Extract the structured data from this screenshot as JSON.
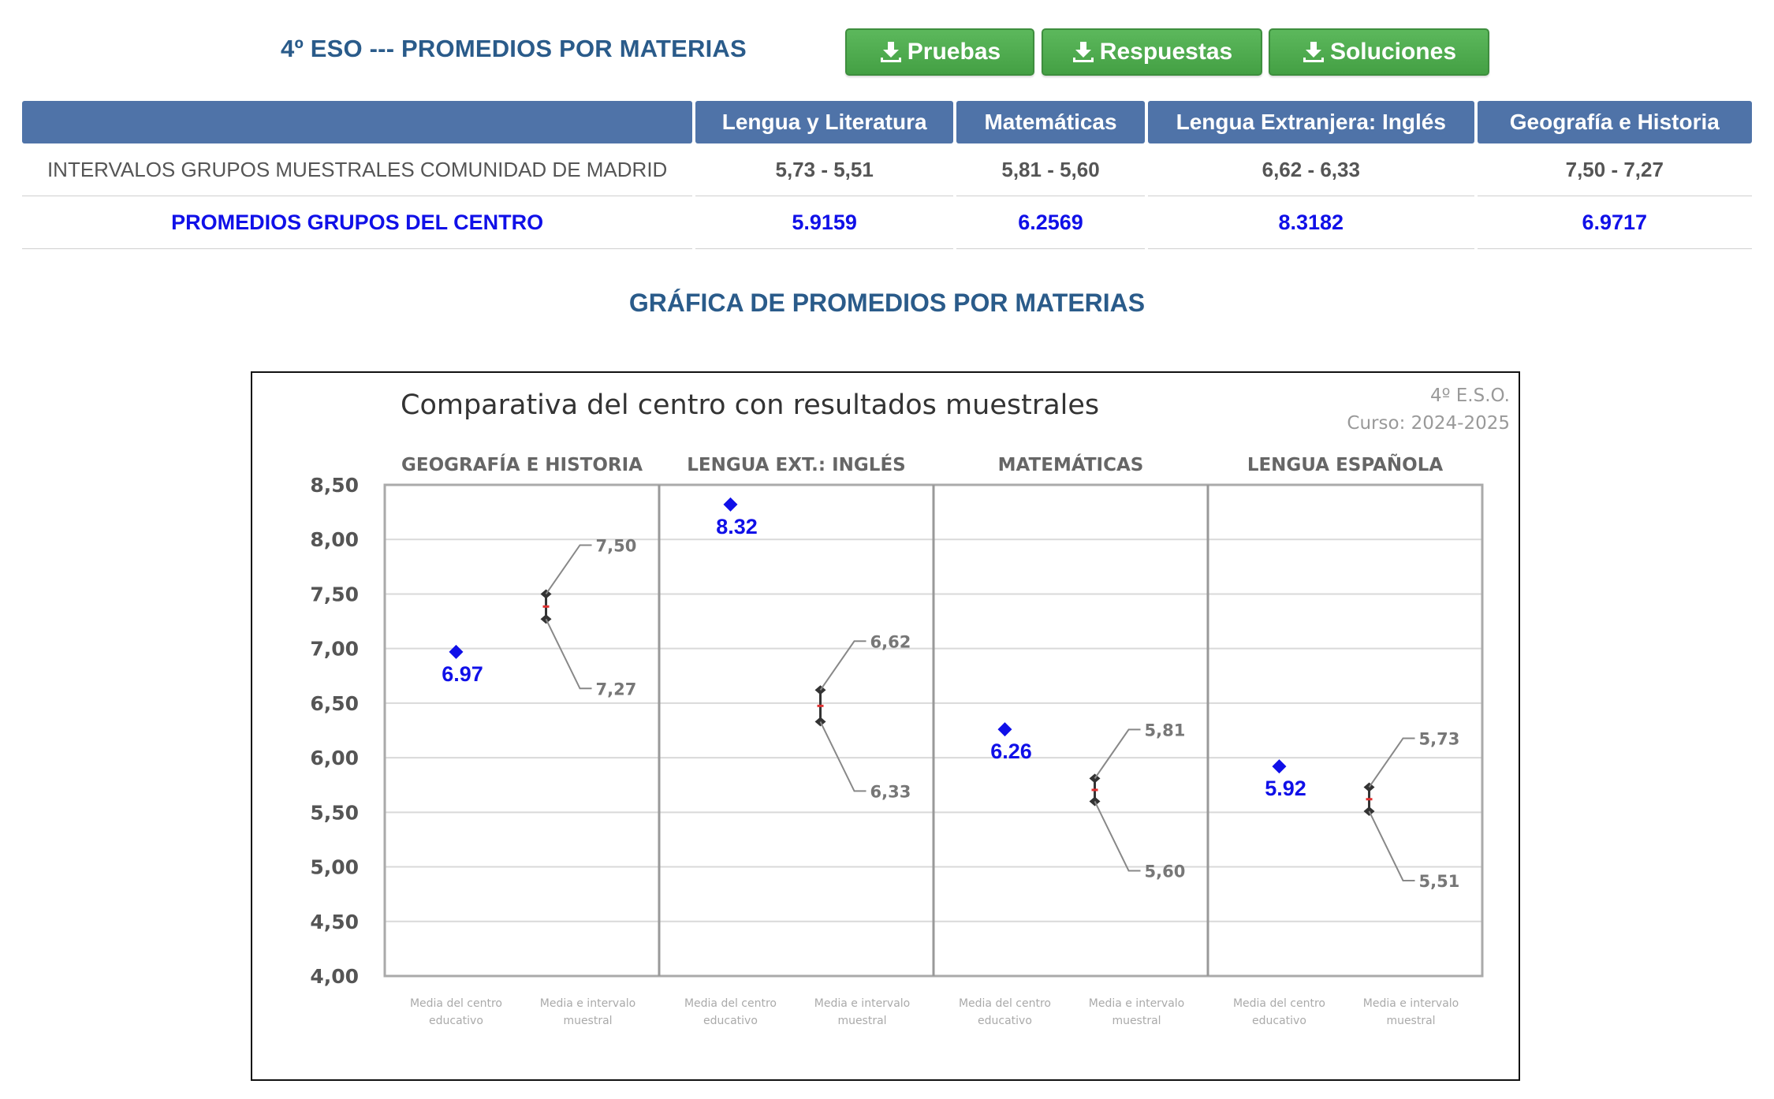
{
  "header": {
    "title": "4º ESO --- PROMEDIOS POR MATERIAS",
    "download_icon": "download-icon",
    "buttons": {
      "pruebas": "Pruebas",
      "respuestas": "Respuestas",
      "soluciones": "Soluciones"
    }
  },
  "table": {
    "headers": [
      "",
      "Lengua y Literatura",
      "Matemáticas",
      "Lengua Extranjera: Inglés",
      "Geografía e Historia"
    ],
    "rows": [
      {
        "label": "INTERVALOS GRUPOS MUESTRALES COMUNIDAD DE MADRID",
        "values": [
          "5,73 - 5,51",
          "5,81 - 5,60",
          "6,62 - 6,33",
          "7,50 - 7,27"
        ]
      },
      {
        "label": "PROMEDIOS GRUPOS DEL CENTRO",
        "values": [
          "5.9159",
          "6.2569",
          "8.3182",
          "6.9717"
        ]
      }
    ]
  },
  "chart_heading": "GRÁFICA DE PROMEDIOS POR MATERIAS",
  "colors": {
    "header_blue": "#4f73a8",
    "title_blue": "#2a5b8a",
    "center_blue": "#1010e8",
    "button_green": "#4cae4c",
    "interval_marker": "#333333",
    "interval_mid": "#e03030"
  },
  "chart_data": {
    "type": "scatter",
    "title": "Comparativa del centro con resultados muestrales",
    "subtitle": [
      "4º E.S.O.",
      "Curso: 2024-2025"
    ],
    "ylim": [
      4.0,
      8.5
    ],
    "yticks": [
      "4,00",
      "4,50",
      "5,00",
      "5,50",
      "6,00",
      "6,50",
      "7,00",
      "7,50",
      "8,00",
      "8,50"
    ],
    "grid": true,
    "x_sublabels": [
      "Media del centro educativo",
      "Media e intervalo muestral"
    ],
    "panels": [
      {
        "name": "GEOGRAFÍA E HISTORIA",
        "center": 6.97,
        "center_label": "6.97",
        "high": 7.5,
        "low": 7.27,
        "high_label": "7,50",
        "low_label": "7,27"
      },
      {
        "name": "LENGUA EXT.: INGLÉS",
        "center": 8.32,
        "center_label": "8.32",
        "high": 6.62,
        "low": 6.33,
        "high_label": "6,62",
        "low_label": "6,33"
      },
      {
        "name": "MATEMÁTICAS",
        "center": 6.26,
        "center_label": "6.26",
        "high": 5.81,
        "low": 5.6,
        "high_label": "5,81",
        "low_label": "5,60"
      },
      {
        "name": "LENGUA ESPAÑOLA",
        "center": 5.92,
        "center_label": "5.92",
        "high": 5.73,
        "low": 5.51,
        "high_label": "5,73",
        "low_label": "5,51"
      }
    ]
  }
}
